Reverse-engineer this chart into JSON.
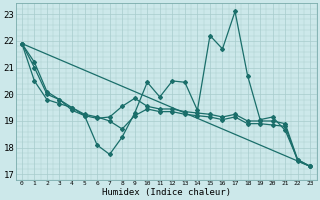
{
  "xlabel": "Humidex (Indice chaleur)",
  "bg_color": "#cce8ea",
  "grid_color": "#a8cccc",
  "line_color": "#1a6e6a",
  "xlim": [
    -0.5,
    23.5
  ],
  "ylim": [
    16.8,
    23.4
  ],
  "yticks": [
    17,
    18,
    19,
    20,
    21,
    22,
    23
  ],
  "xticks": [
    0,
    1,
    2,
    3,
    4,
    5,
    6,
    7,
    8,
    9,
    10,
    11,
    12,
    13,
    14,
    15,
    16,
    17,
    18,
    19,
    20,
    21,
    22,
    23
  ],
  "series1_x": [
    0,
    1,
    2,
    3,
    4,
    5,
    6,
    7,
    8,
    9,
    10,
    11,
    12,
    13,
    14,
    15,
    16,
    17,
    18,
    19,
    20,
    21,
    22,
    23
  ],
  "series1_y": [
    21.9,
    21.2,
    20.1,
    19.8,
    19.4,
    19.2,
    18.1,
    17.75,
    18.4,
    19.3,
    20.45,
    19.9,
    20.5,
    20.45,
    19.4,
    22.2,
    21.7,
    23.1,
    20.7,
    19.05,
    19.15,
    18.65,
    17.55,
    17.3
  ],
  "series2_x": [
    0,
    1,
    2,
    3,
    4,
    5,
    6,
    7,
    8,
    9,
    10,
    11,
    12,
    13,
    14,
    15,
    16,
    17,
    18,
    19,
    20,
    21,
    22,
    23
  ],
  "series2_y": [
    21.9,
    21.0,
    20.0,
    19.8,
    19.5,
    19.2,
    19.1,
    19.15,
    19.55,
    19.85,
    19.55,
    19.45,
    19.45,
    19.35,
    19.3,
    19.25,
    19.15,
    19.25,
    19.0,
    19.0,
    19.0,
    18.9,
    17.55,
    17.3
  ],
  "series3_x": [
    0,
    1,
    2,
    3,
    4,
    5,
    6,
    7,
    8,
    9,
    10,
    11,
    12,
    13,
    14,
    15,
    16,
    17,
    18,
    19,
    20,
    21,
    22,
    23
  ],
  "series3_y": [
    21.9,
    20.5,
    19.8,
    19.65,
    19.5,
    19.25,
    19.15,
    19.0,
    18.7,
    19.2,
    19.45,
    19.35,
    19.35,
    19.25,
    19.2,
    19.15,
    19.05,
    19.15,
    18.9,
    18.9,
    18.85,
    18.8,
    17.5,
    17.3
  ],
  "series4_x": [
    0,
    23
  ],
  "series4_y": [
    21.9,
    17.3
  ],
  "marker": "D",
  "markersize": 2.0,
  "linewidth": 0.9
}
